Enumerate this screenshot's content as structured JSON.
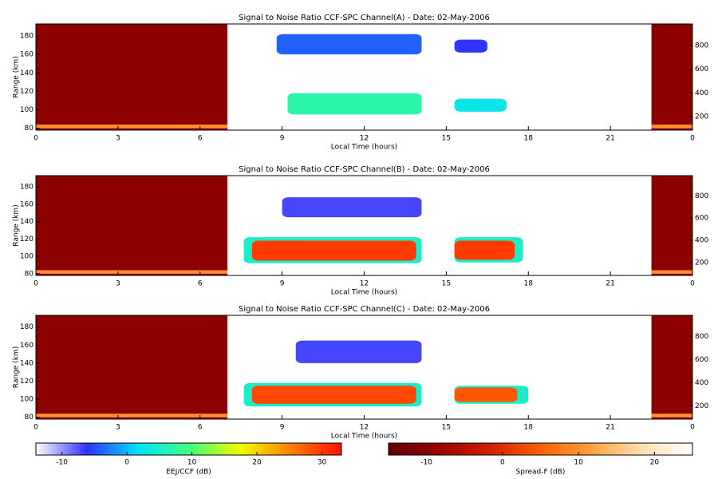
{
  "chart_data": [
    {
      "type": "heatmap",
      "title": "Signal to Noise Ratio CCF-SPC Channel(A) - Date: 02-May-2006",
      "xlabel": "Local Time (hours)",
      "ylabel": "Range (km)",
      "xlim": [
        0,
        24
      ],
      "xticks": [
        0,
        3,
        6,
        9,
        12,
        15,
        18,
        21,
        {
          "value": 24,
          "label": "0"
        }
      ],
      "ylim": [
        78,
        193
      ],
      "yticks": [
        80,
        100,
        120,
        140,
        160,
        180
      ],
      "y2lim": [
        85,
        982
      ],
      "y2ticks": [
        200,
        400,
        600,
        800
      ],
      "spread_f_regions": [
        {
          "x": [
            0,
            7
          ],
          "y": [
            78,
            193
          ],
          "value": -10
        },
        {
          "x": [
            22.5,
            24
          ],
          "y": [
            78,
            193
          ],
          "value": -10
        },
        {
          "x": [
            0,
            7
          ],
          "y": [
            80,
            84
          ],
          "value": 10
        },
        {
          "x": [
            22.5,
            24
          ],
          "y": [
            80,
            84
          ],
          "value": 10
        }
      ],
      "eej_regions": [
        {
          "x": [
            8.8,
            14.1
          ],
          "y": [
            160,
            182
          ],
          "value": -4
        },
        {
          "x": [
            15.3,
            16.5
          ],
          "y": [
            162,
            176
          ],
          "value": -6
        },
        {
          "x": [
            9.2,
            14.1
          ],
          "y": [
            95,
            118
          ],
          "value": 7
        },
        {
          "x": [
            15.3,
            17.2
          ],
          "y": [
            98,
            112
          ],
          "value": 3
        }
      ]
    },
    {
      "type": "heatmap",
      "title": "Signal to Noise Ratio CCF-SPC Channel(B) - Date: 02-May-2006",
      "xlabel": "Local Time (hours)",
      "ylabel": "Range (km)",
      "xlim": [
        0,
        24
      ],
      "xticks": [
        0,
        3,
        6,
        9,
        12,
        15,
        18,
        21,
        {
          "value": 24,
          "label": "0"
        }
      ],
      "ylim": [
        78,
        193
      ],
      "yticks": [
        80,
        100,
        120,
        140,
        160,
        180
      ],
      "y2lim": [
        85,
        982
      ],
      "y2ticks": [
        200,
        400,
        600,
        800
      ],
      "spread_f_regions": [
        {
          "x": [
            0,
            7
          ],
          "y": [
            78,
            193
          ],
          "value": -10
        },
        {
          "x": [
            22.5,
            24
          ],
          "y": [
            78,
            193
          ],
          "value": -10
        },
        {
          "x": [
            0,
            7
          ],
          "y": [
            80,
            84
          ],
          "value": 10
        },
        {
          "x": [
            22.5,
            24
          ],
          "y": [
            80,
            84
          ],
          "value": 10
        }
      ],
      "eej_regions": [
        {
          "x": [
            9,
            14.1
          ],
          "y": [
            145,
            168
          ],
          "value": -7
        },
        {
          "x": [
            7.6,
            14.1
          ],
          "y": [
            92,
            122
          ],
          "value": 5
        },
        {
          "x": [
            7.9,
            13.9
          ],
          "y": [
            95,
            118
          ],
          "value": 30
        },
        {
          "x": [
            15.3,
            17.8
          ],
          "y": [
            93,
            122
          ],
          "value": 5
        },
        {
          "x": [
            15.3,
            17.5
          ],
          "y": [
            96,
            118
          ],
          "value": 30
        }
      ]
    },
    {
      "type": "heatmap",
      "title": "Signal to Noise Ratio CCF-SPC Channel(C) - Date: 02-May-2006",
      "xlabel": "Local Time (hours)",
      "ylabel": "Range (km)",
      "xlim": [
        0,
        24
      ],
      "xticks": [
        0,
        3,
        6,
        9,
        12,
        15,
        18,
        21,
        {
          "value": 24,
          "label": "0"
        }
      ],
      "ylim": [
        78,
        193
      ],
      "yticks": [
        80,
        100,
        120,
        140,
        160,
        180
      ],
      "y2lim": [
        85,
        982
      ],
      "y2ticks": [
        200,
        400,
        600,
        800
      ],
      "spread_f_regions": [
        {
          "x": [
            0,
            7
          ],
          "y": [
            78,
            193
          ],
          "value": -10
        },
        {
          "x": [
            22.5,
            24
          ],
          "y": [
            78,
            193
          ],
          "value": -10
        },
        {
          "x": [
            0,
            7
          ],
          "y": [
            80,
            84
          ],
          "value": 10
        },
        {
          "x": [
            22.5,
            24
          ],
          "y": [
            80,
            84
          ],
          "value": 10
        }
      ],
      "eej_regions": [
        {
          "x": [
            9.5,
            14.1
          ],
          "y": [
            140,
            165
          ],
          "value": -7
        },
        {
          "x": [
            7.6,
            14.1
          ],
          "y": [
            92,
            118
          ],
          "value": 5
        },
        {
          "x": [
            7.9,
            13.9
          ],
          "y": [
            95,
            115
          ],
          "value": 29
        },
        {
          "x": [
            15.3,
            18
          ],
          "y": [
            95,
            115
          ],
          "value": 5
        },
        {
          "x": [
            15.3,
            17.6
          ],
          "y": [
            97,
            113
          ],
          "value": 28
        }
      ]
    },
    {
      "type": "colorbar",
      "label": "EEJ/CCF (dB)",
      "xlim": [
        -14,
        33
      ],
      "xticks": [
        -10,
        0,
        10,
        20,
        30
      ],
      "colormap": [
        "#ffffff",
        "#3030ff",
        "#00e0ff",
        "#40ff80",
        "#f0ff00",
        "#ff8000",
        "#ff1000"
      ]
    },
    {
      "type": "colorbar",
      "label": "Spread-F (dB)",
      "xlim": [
        -15,
        25
      ],
      "xticks": [
        -10,
        0,
        10,
        20
      ],
      "colormap": [
        "#600000",
        "#9a0000",
        "#d02000",
        "#ff6000",
        "#ffa040",
        "#ffe0b0",
        "#ffffff"
      ]
    }
  ]
}
